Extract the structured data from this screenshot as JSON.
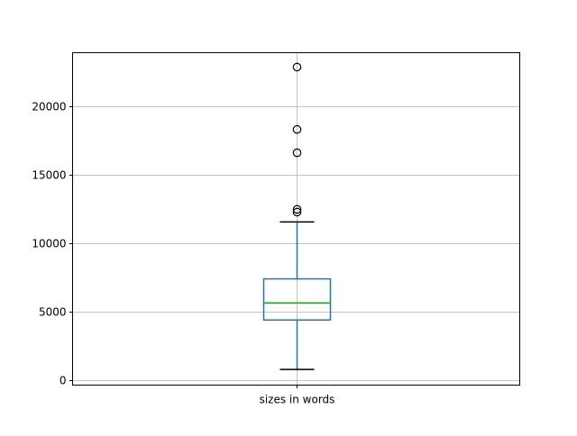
{
  "chart_data": {
    "type": "box",
    "title": "",
    "categories": [
      "sizes in words"
    ],
    "ylim": [
      -350,
      23900
    ],
    "yticks": [
      0,
      5000,
      10000,
      15000,
      20000
    ],
    "grid": true,
    "boxes": [
      {
        "label": "sizes in words",
        "whisker_low": 790,
        "q1": 4400,
        "median": 5650,
        "q3": 7400,
        "whisker_high": 11550,
        "outliers": [
          12270,
          12470,
          16600,
          18300,
          22850
        ]
      }
    ],
    "colors": {
      "box": "#1f77b4",
      "median": "#2ca02c",
      "grid": "#b0b0b0",
      "caps": "#000000"
    }
  }
}
